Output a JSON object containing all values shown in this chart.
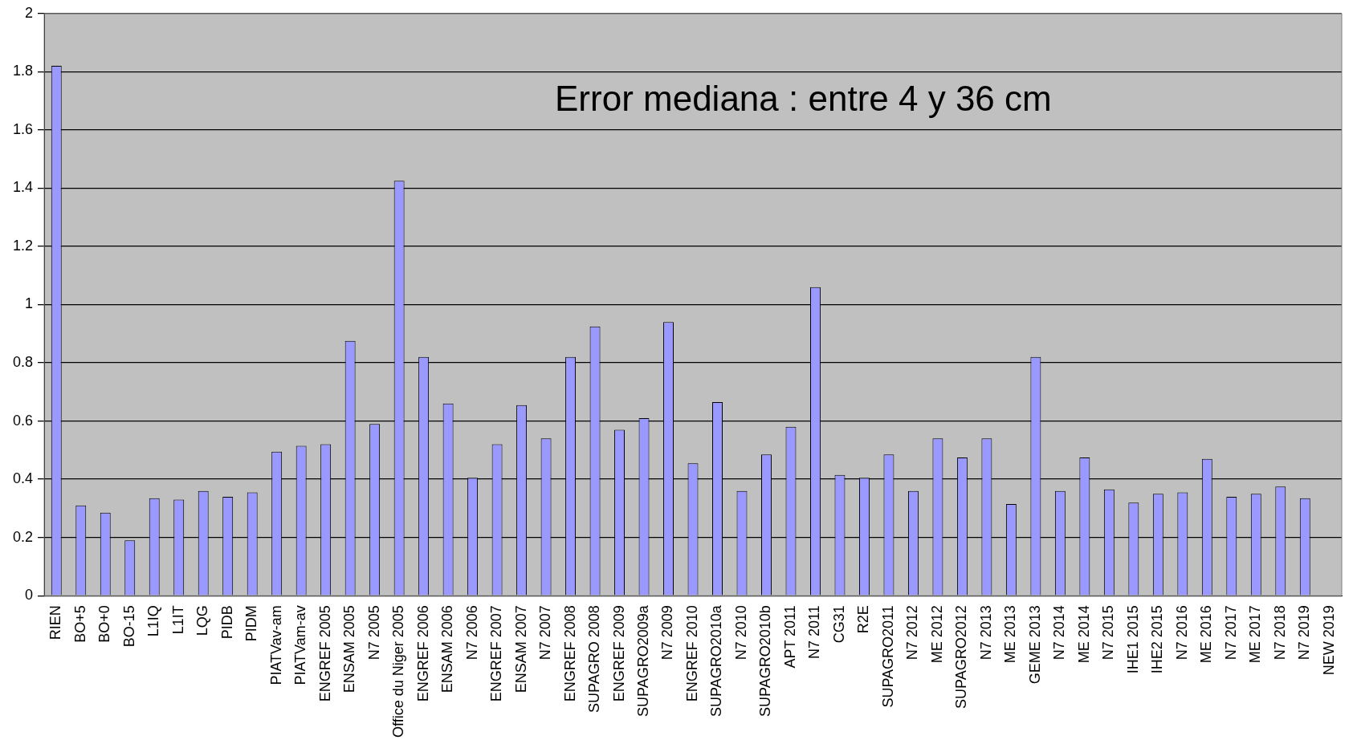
{
  "chart_data": {
    "type": "bar",
    "categories": [
      "RIEN",
      "BO+5",
      "BO+0",
      "BO-15",
      "L1IQ",
      "L1IT",
      "LQG",
      "PIDB",
      "PIDM",
      "PIATVav-am",
      "PIATVam-av",
      "ENGREF 2005",
      "ENSAM 2005",
      "N7 2005",
      "Office du Niger 2005",
      "ENGREF 2006",
      "ENSAM 2006",
      "N7 2006",
      "ENGREF 2007",
      "ENSAM 2007",
      "N7 2007",
      "ENGREF 2008",
      "SUPAGRO 2008",
      "ENGREF 2009",
      "SUPAGRO2009a",
      "N7 2009",
      "ENGREF 2010",
      "SUPAGRO2010a",
      "N7 2010",
      "SUPAGRO2010b",
      "APT 2011",
      "N7 2011",
      "CG31",
      "R2E",
      "SUPAGRO2011",
      "N7 2012",
      "ME 2012",
      "SUPAGRO2012",
      "N7 2013",
      "ME 2013",
      "GEME 2013",
      "N7 2014",
      "ME 2014",
      "N7 2015",
      "IHE1 2015",
      "IHE2 2015",
      "N7 2016",
      "ME 2016",
      "N7 2017",
      "ME 2017",
      "N7 2018",
      "N7 2019",
      "NEW 2019"
    ],
    "values": [
      1.82,
      0.31,
      0.285,
      0.19,
      0.335,
      0.33,
      0.36,
      0.34,
      0.355,
      0.495,
      0.515,
      0.52,
      0.875,
      0.59,
      1.425,
      0.82,
      0.66,
      0.405,
      0.52,
      0.655,
      0.54,
      0.82,
      0.925,
      0.57,
      0.61,
      0.94,
      0.455,
      0.665,
      0.36,
      0.485,
      0.58,
      1.06,
      0.415,
      0.405,
      0.485,
      0.36,
      0.54,
      0.475,
      0.54,
      0.315,
      0.82,
      0.36,
      0.475,
      0.365,
      0.32,
      0.35,
      0.355,
      0.47,
      0.34,
      0.35,
      0.375,
      0.335,
      null
    ],
    "color": "#9999ff",
    "ylim": [
      0,
      2
    ],
    "yticks": [
      0,
      0.2,
      0.4,
      0.6,
      0.8,
      1,
      1.2,
      1.4,
      1.6,
      1.8,
      2
    ],
    "grid": "y",
    "legend": false,
    "annotations": [
      "Error mediana : entre 4 y 36 cm"
    ]
  }
}
